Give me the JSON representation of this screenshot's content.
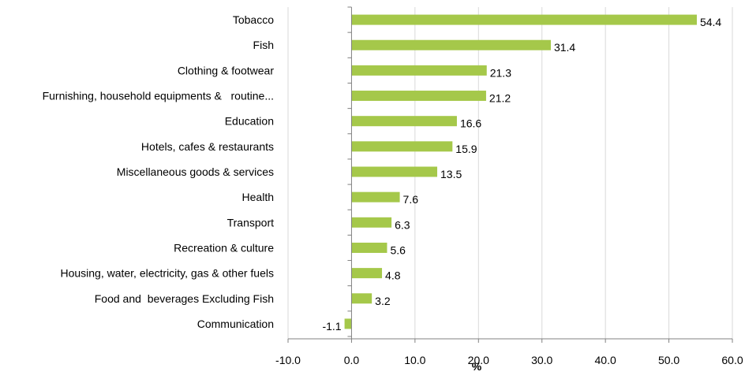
{
  "chart_data": {
    "type": "bar",
    "orientation": "horizontal",
    "title": "",
    "xlabel": "%",
    "ylabel": "",
    "xlim": [
      -10,
      60
    ],
    "ticks": [
      "-10.0",
      "0.0",
      "10.0",
      "20.0",
      "30.0",
      "40.0",
      "50.0",
      "60.0"
    ],
    "tick_values": [
      -10,
      0,
      10,
      20,
      30,
      40,
      50,
      60
    ],
    "grid": "vertical",
    "legend": "none",
    "bar_color": "#a5c84a",
    "categories": [
      "Tobacco",
      "Fish",
      "Clothing & footwear",
      "Furnishing, household equipments &   routine...",
      "Education",
      "Hotels, cafes & restaurants",
      "Miscellaneous goods & services",
      "Health",
      "Transport",
      "Recreation & culture",
      "Housing, water, electricity, gas & other fuels",
      "Food and  beverages Excluding Fish",
      "Communication"
    ],
    "values": [
      54.4,
      31.4,
      21.3,
      21.2,
      16.6,
      15.9,
      13.5,
      7.6,
      6.3,
      5.6,
      4.8,
      3.2,
      -1.1
    ],
    "value_labels": [
      "54.4",
      "31.4",
      "21.3",
      "21.2",
      "16.6",
      "15.9",
      "13.5",
      "7.6",
      "6.3",
      "5.6",
      "4.8",
      "3.2",
      "-1.1"
    ]
  }
}
